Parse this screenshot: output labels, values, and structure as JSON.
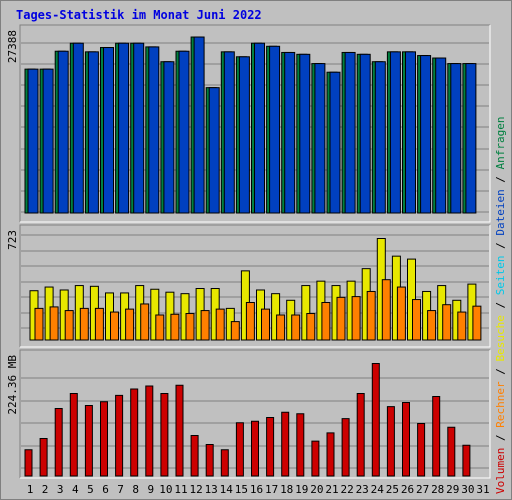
{
  "title": "Tages-Statistik im Monat Juni 2022",
  "legend": [
    {
      "name": "Volumen",
      "color": "#cc0000"
    },
    {
      "name": "Rechner",
      "color": "#ff8000"
    },
    {
      "name": "Besuche",
      "color": "#e8e800"
    },
    {
      "name": "Seiten",
      "color": "#00c8e8"
    },
    {
      "name": "Dateien",
      "color": "#0040c0"
    },
    {
      "name": "Anfragen",
      "color": "#008040"
    }
  ],
  "chart_data": [
    {
      "type": "bar",
      "panel": "top",
      "series": [
        {
          "name": "Anfragen",
          "color": "#008040",
          "values": [
            23300,
            23300,
            26200,
            27500,
            26100,
            26800,
            27500,
            27500,
            26900,
            24500,
            26200,
            28500,
            20300,
            26100,
            25300,
            27500,
            27000,
            26000,
            25700,
            24200,
            22800,
            26000,
            25700,
            24500,
            26100,
            26100,
            25500,
            25100,
            24200,
            24200
          ]
        },
        {
          "name": "Dateien",
          "color": "#0040c0",
          "values": [
            23300,
            23300,
            26200,
            27500,
            26100,
            26800,
            27500,
            27500,
            26900,
            24500,
            26200,
            28500,
            20300,
            26100,
            25300,
            27500,
            27000,
            26000,
            25700,
            24200,
            22800,
            26000,
            25700,
            24500,
            26100,
            26100,
            25500,
            25100,
            24200,
            24200
          ]
        }
      ],
      "yval": "27388",
      "ymax": 29800
    },
    {
      "type": "bar",
      "panel": "middle",
      "series": [
        {
          "name": "Seiten",
          "color": "#00c8e8",
          "values": [
            0,
            0,
            0,
            0,
            0,
            0,
            0,
            0,
            0,
            0,
            0,
            0,
            0,
            0,
            0,
            0,
            0,
            0,
            0,
            0,
            0,
            0,
            0,
            0,
            0,
            0,
            0,
            0,
            0,
            0
          ]
        },
        {
          "name": "Besuche",
          "color": "#e8e800",
          "values": [
            335,
            360,
            340,
            370,
            365,
            320,
            320,
            370,
            345,
            325,
            315,
            350,
            350,
            215,
            470,
            340,
            315,
            270,
            370,
            400,
            370,
            400,
            485,
            690,
            570,
            550,
            330,
            370,
            270,
            380
          ]
        },
        {
          "name": "Rechner",
          "color": "#ff8000",
          "values": [
            215,
            225,
            200,
            215,
            215,
            190,
            210,
            245,
            170,
            175,
            180,
            200,
            210,
            125,
            255,
            210,
            170,
            170,
            180,
            255,
            290,
            295,
            330,
            410,
            360,
            275,
            200,
            240,
            190,
            230
          ]
        }
      ],
      "yval": "723",
      "ymax": 775
    },
    {
      "type": "bar",
      "panel": "bottom",
      "series": [
        {
          "name": "Volumen",
          "color": "#cc0000",
          "values": [
            70,
            100,
            180,
            220,
            188,
            198,
            215,
            232,
            240,
            220,
            242,
            108,
            84,
            70,
            142,
            146,
            156,
            170,
            166,
            93,
            115,
            153,
            220,
            300,
            185,
            196,
            140,
            212,
            130,
            82
          ]
        }
      ],
      "yval": "224.36 MB",
      "ymax": 320
    }
  ],
  "days": [
    {
      "label": "1",
      "color": "#000000"
    },
    {
      "label": "2",
      "color": "#000000"
    },
    {
      "label": "3",
      "color": "#000000"
    },
    {
      "label": "4",
      "color": "#008040"
    },
    {
      "label": "5",
      "color": "#008040"
    },
    {
      "label": "6",
      "color": "#000000"
    },
    {
      "label": "7",
      "color": "#000000"
    },
    {
      "label": "8",
      "color": "#000000"
    },
    {
      "label": "9",
      "color": "#000000"
    },
    {
      "label": "10",
      "color": "#000000"
    },
    {
      "label": "11",
      "color": "#008040"
    },
    {
      "label": "12",
      "color": "#008040"
    },
    {
      "label": "13",
      "color": "#000000"
    },
    {
      "label": "14",
      "color": "#000000"
    },
    {
      "label": "15",
      "color": "#000000"
    },
    {
      "label": "16",
      "color": "#000000"
    },
    {
      "label": "17",
      "color": "#000000"
    },
    {
      "label": "18",
      "color": "#008040"
    },
    {
      "label": "19",
      "color": "#008040"
    },
    {
      "label": "20",
      "color": "#000000"
    },
    {
      "label": "21",
      "color": "#000000"
    },
    {
      "label": "22",
      "color": "#000000"
    },
    {
      "label": "23",
      "color": "#000000"
    },
    {
      "label": "24",
      "color": "#000000"
    },
    {
      "label": "25",
      "color": "#008040"
    },
    {
      "label": "26",
      "color": "#008040"
    },
    {
      "label": "27",
      "color": "#000000"
    },
    {
      "label": "28",
      "color": "#000000"
    },
    {
      "label": "29",
      "color": "#000000"
    },
    {
      "label": "30",
      "color": "#000000"
    },
    {
      "label": "31",
      "color": "#000000"
    }
  ]
}
